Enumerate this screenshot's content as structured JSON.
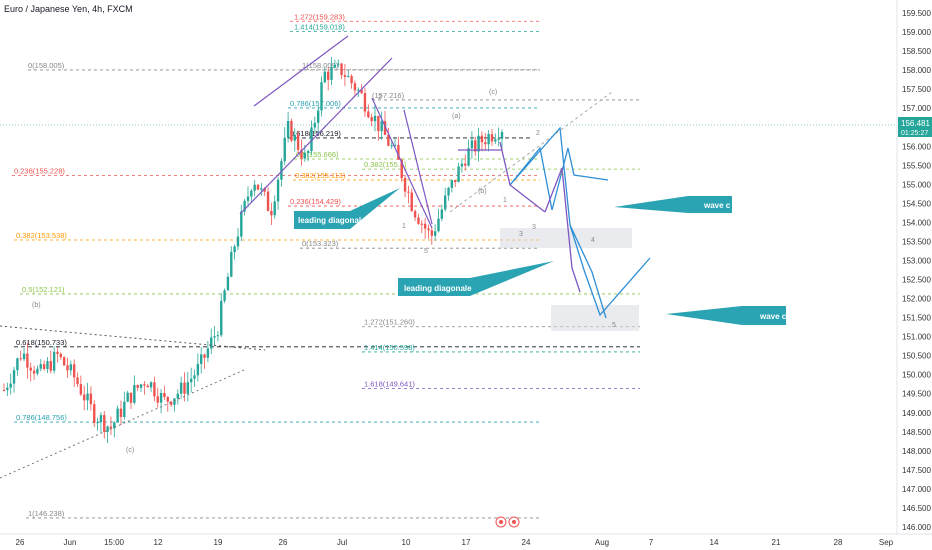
{
  "title": "Euro / Japanese Yen, 4h, FXCM",
  "colors": {
    "up": "#26a69a",
    "down": "#ef5350",
    "bg": "#ffffff",
    "purple": "#7e57c2",
    "blue": "#2f8fd6",
    "teal": "#2aa3b3",
    "price_tag": "#26a69a"
  },
  "price_axis": {
    "ticks": [
      "159.500",
      "159.000",
      "158.500",
      "158.000",
      "157.500",
      "157.000",
      "156.500",
      "156.000",
      "155.500",
      "155.000",
      "154.500",
      "154.000",
      "153.500",
      "153.000",
      "152.500",
      "152.000",
      "151.500",
      "151.000",
      "150.500",
      "150.000",
      "149.500",
      "149.000",
      "148.500",
      "148.000",
      "147.500",
      "147.000",
      "146.500",
      "146.000"
    ],
    "current_price": "156.481",
    "countdown": "01:25:27"
  },
  "date_axis": {
    "ticks": [
      "26",
      "Jun",
      "15:00",
      "12",
      "19",
      "26",
      "Jul",
      "10",
      "17",
      "24",
      "Aug",
      "7",
      "14",
      "21",
      "28",
      "Sep"
    ]
  },
  "fib_levels": [
    {
      "label": "1.272(159.283)",
      "price": 159.283,
      "color": "#ef5350"
    },
    {
      "label": "1.414(159.018)",
      "price": 159.018,
      "color": "#26a69a"
    },
    {
      "label": "0(158.005)",
      "price": 158.005,
      "color": "#888888"
    },
    {
      "label": "1(158.009)",
      "price": 158.009,
      "color": "#888888"
    },
    {
      "label": "0.786(157.006)",
      "price": 157.006,
      "color": "#2aa3b3"
    },
    {
      "label": "(157.216)",
      "price": 157.216,
      "color": "#888888"
    },
    {
      "label": "0.618(156.219)",
      "price": 156.219,
      "color": "#131722"
    },
    {
      "label": "0.5(155.666)",
      "price": 155.666,
      "color": "#8bc34a"
    },
    {
      "label": "0.382(155.113)",
      "price": 155.113,
      "color": "#ff9800"
    },
    {
      "label": "0.382(155.4)",
      "price": 155.4,
      "color": "#8bc34a"
    },
    {
      "label": "0.236(155.228)",
      "price": 155.228,
      "color": "#ef5350"
    },
    {
      "label": "0.236(154.429)",
      "price": 154.429,
      "color": "#ef5350"
    },
    {
      "label": "0.382(153.538)",
      "price": 153.538,
      "color": "#ff9800"
    },
    {
      "label": "0(153.323)",
      "price": 153.323,
      "color": "#888888"
    },
    {
      "label": "0.5(152.121)",
      "price": 152.121,
      "color": "#8bc34a"
    },
    {
      "label": "1.272(151.260)",
      "price": 151.26,
      "color": "#888888"
    },
    {
      "label": "0.618(150.733)",
      "price": 150.733,
      "color": "#131722"
    },
    {
      "label": "1.414(150.598)",
      "price": 150.598,
      "color": "#26a69a"
    },
    {
      "label": "1.618(149.641)",
      "price": 149.641,
      "color": "#7e57c2"
    },
    {
      "label": "0.786(148.756)",
      "price": 148.756,
      "color": "#2aa3b3"
    },
    {
      "label": "1(146.238)",
      "price": 146.238,
      "color": "#888888"
    }
  ],
  "wave_labels": [
    "(b)",
    "(c)",
    "(a)",
    "(b)",
    "(c)",
    "1",
    "2",
    "3",
    "4",
    "5",
    "1",
    "2",
    "3",
    "4",
    "5"
  ],
  "annotations": {
    "leading_diagonal": "leading diagonal",
    "leading_diagonale": "leading diagonale",
    "wave_c_1": "wave c",
    "wave_c_2": "wave c"
  },
  "chart_data": {
    "type": "candlestick",
    "title": "Euro / Japanese Yen, 4h, FXCM",
    "ylim": [
      146.0,
      160.0
    ],
    "price_path": [
      [
        "May 26",
        149.6
      ],
      [
        "May 28",
        150.6
      ],
      [
        "May 30",
        150.0
      ],
      [
        "Jun 1",
        150.5
      ],
      [
        "Jun 3",
        149.9
      ],
      [
        "Jun 5",
        149.0
      ],
      [
        "Jun 7",
        148.6
      ],
      [
        "Jun 9",
        149.4
      ],
      [
        "Jun 11",
        149.9
      ],
      [
        "Jun 13",
        149.3
      ],
      [
        "Jun 15",
        149.6
      ],
      [
        "Jun 17",
        150.2
      ],
      [
        "Jun 19",
        151.2
      ],
      [
        "Jun 21",
        153.5
      ],
      [
        "Jun 23",
        155.2
      ],
      [
        "Jun 25",
        154.3
      ],
      [
        "Jun 27",
        156.5
      ],
      [
        "Jun 29",
        155.6
      ],
      [
        "Jul 1",
        157.9
      ],
      [
        "Jul 3",
        158.0
      ],
      [
        "Jul 5",
        157.4
      ],
      [
        "Jul 7",
        156.6
      ],
      [
        "Jul 9",
        155.8
      ],
      [
        "Jul 11",
        154.4
      ],
      [
        "Jul 13",
        153.6
      ],
      [
        "Jul 15",
        154.8
      ],
      [
        "Jul 17",
        155.8
      ],
      [
        "Jul 19",
        156.2
      ],
      [
        "Jul 21",
        156.5
      ]
    ]
  }
}
